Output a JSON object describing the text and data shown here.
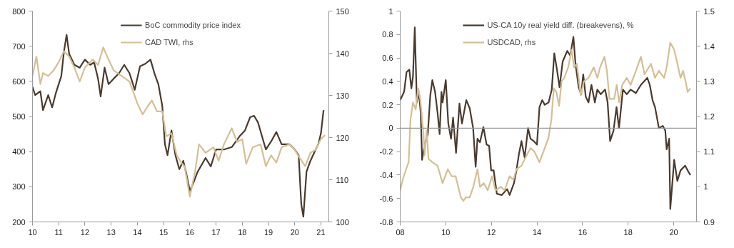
{
  "chart_data": [
    {
      "type": "line",
      "xlim": [
        10,
        21.3
      ],
      "xticks": [
        10,
        11,
        12,
        13,
        14,
        15,
        16,
        17,
        18,
        19,
        20,
        21
      ],
      "ylim": [
        200,
        800
      ],
      "yticks": [
        200,
        300,
        400,
        500,
        600,
        700,
        800
      ],
      "y2lim": [
        100,
        150
      ],
      "y2ticks": [
        100,
        110,
        120,
        130,
        140,
        150
      ],
      "grid": false,
      "legend": "top",
      "series": [
        {
          "name": "BoC commodity price index",
          "color": "#4a3a2e",
          "x": [
            10.0,
            10.1,
            10.3,
            10.4,
            10.6,
            10.75,
            10.9,
            11.1,
            11.2,
            11.3,
            11.4,
            11.6,
            11.8,
            12.0,
            12.2,
            12.35,
            12.5,
            12.6,
            12.75,
            12.9,
            13.1,
            13.3,
            13.5,
            13.7,
            13.9,
            14.1,
            14.3,
            14.5,
            14.65,
            14.8,
            14.95,
            15.05,
            15.15,
            15.3,
            15.45,
            15.6,
            15.75,
            15.85,
            16.0,
            16.1,
            16.3,
            16.6,
            16.8,
            17.0,
            17.3,
            17.6,
            17.9,
            18.1,
            18.3,
            18.45,
            18.6,
            18.9,
            19.1,
            19.3,
            19.5,
            19.8,
            20.0,
            20.15,
            20.25,
            20.33,
            20.45,
            20.6,
            20.8,
            20.9,
            21.0,
            21.1
          ],
          "values": [
            584,
            561,
            572,
            518,
            561,
            526,
            569,
            615,
            685,
            732,
            678,
            647,
            639,
            662,
            647,
            654,
            608,
            557,
            639,
            592,
            608,
            623,
            647,
            623,
            576,
            643,
            650,
            662,
            623,
            592,
            530,
            421,
            390,
            460,
            390,
            350,
            374,
            343,
            289,
            304,
            343,
            382,
            358,
            406,
            406,
            413,
            444,
            460,
            498,
            502,
            483,
            406,
            429,
            456,
            421,
            421,
            406,
            390,
            250,
            215,
            343,
            374,
            406,
            421,
            452,
            518
          ]
        },
        {
          "name": "CAD TWI, rhs",
          "color": "#d4bf95",
          "axis": "y2",
          "x": [
            10.0,
            10.15,
            10.3,
            10.4,
            10.6,
            10.8,
            11.0,
            11.2,
            11.4,
            11.6,
            11.8,
            12.0,
            12.3,
            12.5,
            12.7,
            12.9,
            13.1,
            13.4,
            13.7,
            14.0,
            14.2,
            14.4,
            14.55,
            14.75,
            14.95,
            15.1,
            15.3,
            15.5,
            15.7,
            15.8,
            16.0,
            16.2,
            16.35,
            16.6,
            16.9,
            17.1,
            17.3,
            17.6,
            17.8,
            18.0,
            18.15,
            18.4,
            18.7,
            18.9,
            19.1,
            19.3,
            19.5,
            19.8,
            20.0,
            20.2,
            20.4,
            20.6,
            20.8,
            21.0,
            21.15
          ],
          "values": [
            134.6,
            139.2,
            132.7,
            135.3,
            134.6,
            135.9,
            137.9,
            140.5,
            139.2,
            136.6,
            133.3,
            136.6,
            138.5,
            137.2,
            141.4,
            138.5,
            135.9,
            134.6,
            133.3,
            128.1,
            125.5,
            127.5,
            128.8,
            126.2,
            126.2,
            120.3,
            121.0,
            115.8,
            113.8,
            113.2,
            106.0,
            111.9,
            118.4,
            116.4,
            117.7,
            114.5,
            118.4,
            122.2,
            119.0,
            119.6,
            113.8,
            117.7,
            118.4,
            113.2,
            115.8,
            114.1,
            117.7,
            118.4,
            117.1,
            115.1,
            113.2,
            116.4,
            117.1,
            119.6,
            120.6
          ]
        }
      ]
    },
    {
      "type": "line",
      "xlim": [
        8,
        21
      ],
      "xticks": [
        {
          "value": 8,
          "label": "08"
        },
        10,
        12,
        14,
        16,
        18,
        20
      ],
      "ylim": [
        -0.8,
        1
      ],
      "yticks": [
        -0.8,
        -0.6,
        -0.4,
        -0.2,
        0,
        0.2,
        0.4,
        0.6,
        0.8,
        1
      ],
      "y2lim": [
        0.9,
        1.5
      ],
      "y2ticks": [
        0.9,
        1,
        1.1,
        1.2,
        1.3,
        1.4,
        1.5
      ],
      "grid": false,
      "legend": "top",
      "ref_lines": [
        {
          "axis": "y",
          "value": 0,
          "color": "#999999"
        }
      ],
      "series": [
        {
          "name": "US-CA 10y real yield diff. (breakevens), %",
          "color": "#4a3a2e",
          "x": [
            8.0,
            8.17,
            8.28,
            8.4,
            8.49,
            8.56,
            8.64,
            8.73,
            8.82,
            8.9,
            8.96,
            9.07,
            9.21,
            9.32,
            9.41,
            9.53,
            9.64,
            9.73,
            9.81,
            9.86,
            10.0,
            10.11,
            10.23,
            10.32,
            10.45,
            10.6,
            10.71,
            10.9,
            11.05,
            11.2,
            11.31,
            11.39,
            11.5,
            11.65,
            11.79,
            11.9,
            11.99,
            12.1,
            12.24,
            12.46,
            12.69,
            12.8,
            12.99,
            13.1,
            13.21,
            13.32,
            13.46,
            13.61,
            13.72,
            13.86,
            14.0,
            14.11,
            14.23,
            14.34,
            14.51,
            14.65,
            14.76,
            14.87,
            14.99,
            15.13,
            15.33,
            15.46,
            15.6,
            15.69,
            15.83,
            15.94,
            16.03,
            16.14,
            16.26,
            16.39,
            16.54,
            16.65,
            16.8,
            16.99,
            17.1,
            17.21,
            17.36,
            17.49,
            17.6,
            17.77,
            17.94,
            18.11,
            18.34,
            18.56,
            18.84,
            18.95,
            19.07,
            19.18,
            19.35,
            19.52,
            19.63,
            19.69,
            19.8,
            19.85,
            20.02,
            20.16,
            20.3,
            20.5,
            20.64,
            20.73
          ],
          "values": [
            0.24,
            0.31,
            0.48,
            0.5,
            0.34,
            0.44,
            0.86,
            0.22,
            0.31,
            0.13,
            -0.27,
            -0.14,
            -0.05,
            0.28,
            0.41,
            0.31,
            0.13,
            -0.05,
            0.31,
            0.22,
            0.41,
            0.04,
            -0.09,
            0.09,
            -0.21,
            0.21,
            0.04,
            0.24,
            0.17,
            0.0,
            -0.33,
            -0.09,
            -0.12,
            0.01,
            -0.14,
            -0.15,
            -0.36,
            -0.36,
            -0.56,
            -0.57,
            -0.52,
            -0.57,
            -0.47,
            -0.36,
            -0.22,
            -0.11,
            -0.25,
            0.0,
            -0.09,
            -0.11,
            -0.14,
            0.18,
            0.24,
            0.2,
            0.22,
            0.33,
            0.64,
            0.51,
            0.35,
            0.57,
            0.66,
            0.62,
            0.78,
            0.55,
            0.35,
            0.29,
            0.46,
            0.27,
            0.22,
            0.37,
            0.22,
            0.33,
            0.29,
            0.33,
            0.22,
            -0.11,
            -0.02,
            0.18,
            0.0,
            0.33,
            0.29,
            0.33,
            0.3,
            0.37,
            0.43,
            0.37,
            0.24,
            0.18,
            0.0,
            0.02,
            -0.02,
            -0.18,
            -0.09,
            -0.69,
            -0.27,
            -0.45,
            -0.36,
            -0.32,
            -0.37,
            -0.4
          ]
        },
        {
          "name": "USDCAD, rhs",
          "color": "#d4bf95",
          "axis": "y2",
          "x": [
            8.0,
            8.11,
            8.26,
            8.37,
            8.45,
            8.56,
            8.68,
            8.79,
            8.88,
            9.02,
            9.07,
            9.16,
            9.24,
            9.41,
            9.64,
            9.86,
            10.09,
            10.26,
            10.43,
            10.66,
            10.77,
            10.88,
            11.05,
            11.21,
            11.39,
            11.5,
            11.67,
            11.84,
            12.03,
            12.18,
            12.41,
            12.58,
            12.8,
            12.97,
            13.1,
            13.32,
            13.55,
            13.72,
            13.89,
            14.11,
            14.34,
            14.51,
            14.63,
            14.74,
            14.85,
            14.97,
            15.08,
            15.2,
            15.37,
            15.52,
            15.63,
            15.75,
            15.92,
            16.06,
            16.26,
            16.49,
            16.65,
            16.77,
            16.96,
            17.07,
            17.18,
            17.39,
            17.5,
            17.61,
            17.74,
            17.94,
            18.11,
            18.34,
            18.56,
            18.72,
            19.0,
            19.18,
            19.35,
            19.58,
            19.69,
            19.85,
            20.02,
            20.16,
            20.3,
            20.41,
            20.52,
            20.61,
            20.73
          ],
          "values": [
            0.99,
            1.02,
            1.05,
            1.07,
            1.19,
            1.24,
            1.22,
            1.28,
            1.25,
            1.15,
            1.09,
            1.16,
            1.08,
            1.07,
            1.06,
            1.01,
            1.05,
            1.03,
            1.03,
            0.97,
            0.96,
            0.97,
            0.97,
            1.0,
            1.05,
            1.0,
            1.01,
            0.99,
            1.03,
            0.99,
            1.0,
            0.99,
            1.03,
            1.02,
            1.05,
            1.06,
            1.09,
            1.11,
            1.1,
            1.07,
            1.11,
            1.14,
            1.19,
            1.28,
            1.27,
            1.23,
            1.3,
            1.31,
            1.34,
            1.39,
            1.34,
            1.35,
            1.26,
            1.3,
            1.31,
            1.34,
            1.31,
            1.34,
            1.37,
            1.33,
            1.25,
            1.25,
            1.29,
            1.24,
            1.29,
            1.31,
            1.29,
            1.33,
            1.37,
            1.32,
            1.35,
            1.31,
            1.33,
            1.31,
            1.34,
            1.41,
            1.39,
            1.35,
            1.31,
            1.33,
            1.3,
            1.27,
            1.28
          ]
        }
      ]
    }
  ]
}
